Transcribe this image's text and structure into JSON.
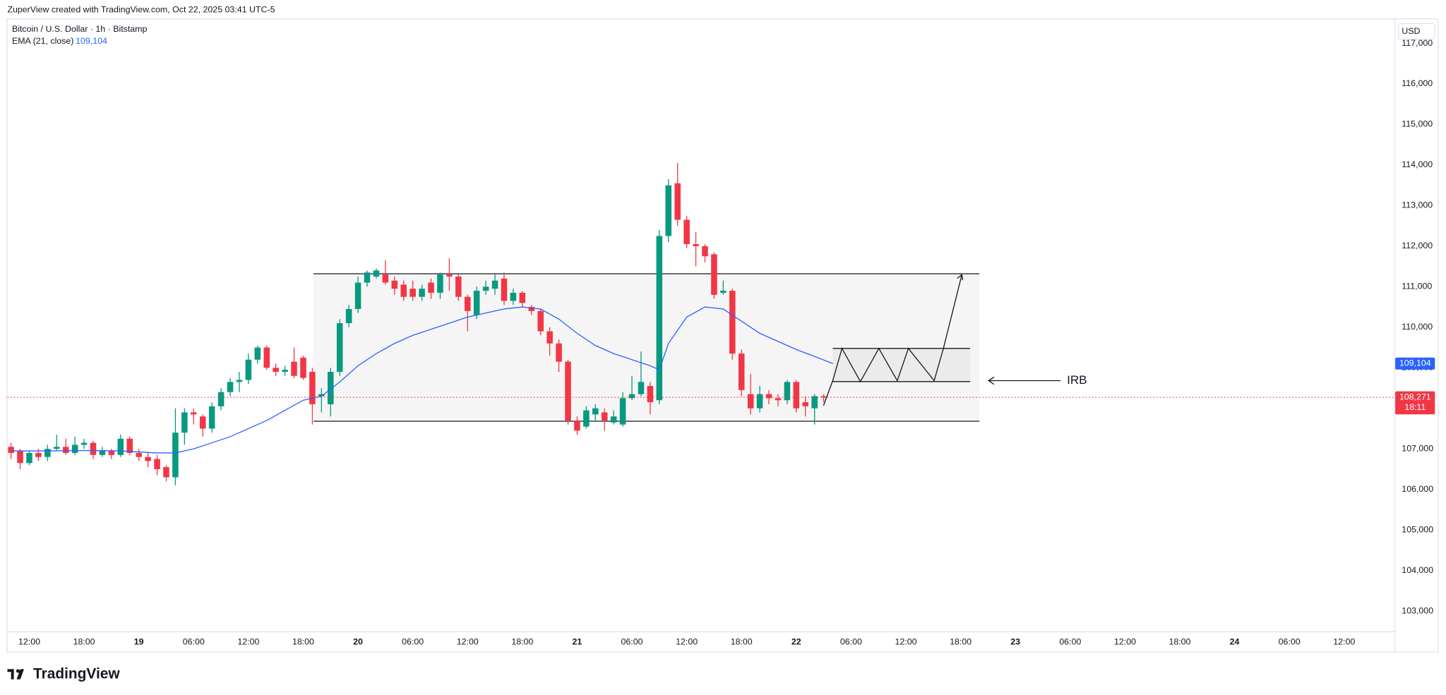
{
  "header": {
    "credit": "ZuperView created with TradingView.com, Oct 22, 2025 03:41 UTC-5",
    "logo": "TradingView"
  },
  "chart_data": {
    "type": "candlestick",
    "title": "Bitcoin / U.S. Dollar · 1h · Bitstamp",
    "currency": "USD",
    "annotation": "IRB",
    "up_color": "#089981",
    "down_color": "#f23645",
    "x": [
      -2,
      -1,
      0,
      1,
      2,
      3,
      4,
      5,
      6,
      7,
      8,
      9,
      10,
      11,
      12,
      13,
      14,
      15,
      16,
      17,
      18,
      19,
      20,
      21,
      22,
      23,
      24,
      25,
      26,
      27,
      28,
      29,
      30,
      31,
      32,
      33,
      34,
      35,
      36,
      37,
      38,
      39,
      40,
      41,
      42,
      43,
      44,
      45,
      46,
      47,
      48,
      49,
      50,
      51,
      52,
      53,
      54,
      55,
      56,
      57,
      58,
      59,
      60,
      61,
      62,
      63,
      64,
      65,
      66,
      67,
      68,
      69,
      70,
      71,
      72,
      73,
      74,
      75,
      76,
      77,
      78,
      79,
      80,
      81,
      82,
      83,
      84,
      85,
      86,
      87
    ],
    "open": [
      107050,
      106950,
      106650,
      106900,
      106800,
      107000,
      107050,
      106900,
      107100,
      107150,
      106850,
      106950,
      106850,
      107250,
      106900,
      106800,
      106750,
      106550,
      106300,
      107400,
      107900,
      107800,
      107500,
      108050,
      108400,
      108650,
      108700,
      109200,
      109500,
      109000,
      108900,
      109150,
      109250,
      108900,
      108300,
      108100,
      108900,
      110100,
      110450,
      111100,
      111250,
      111300,
      111150,
      111050,
      110950,
      110750,
      111100,
      110850,
      111300,
      111250,
      110750,
      110300,
      110900,
      110950,
      111200,
      110650,
      110850,
      110500,
      110400,
      109900,
      109600,
      109150,
      107700,
      107550,
      107850,
      107900,
      107650,
      107600,
      108250,
      108350,
      108550,
      108200,
      112250,
      113550,
      112650,
      112050,
      112000,
      111800,
      110850,
      110900,
      109350,
      108350,
      108000,
      108350,
      108250,
      108200,
      108650,
      108150,
      108000,
      108300
    ],
    "high": [
      107150,
      107000,
      106950,
      107000,
      107100,
      107350,
      107250,
      107300,
      107250,
      107200,
      107050,
      107000,
      107350,
      107300,
      107000,
      106900,
      106850,
      106600,
      108000,
      108000,
      108000,
      107850,
      108150,
      108500,
      108750,
      108900,
      109350,
      109550,
      109550,
      109100,
      109050,
      109500,
      109300,
      109000,
      108500,
      109000,
      110200,
      110550,
      111250,
      111400,
      111450,
      111650,
      111250,
      111150,
      111150,
      111050,
      111200,
      111350,
      111700,
      111300,
      110800,
      111000,
      111150,
      111300,
      111350,
      110950,
      110900,
      110550,
      110450,
      110000,
      109700,
      109200,
      107800,
      108050,
      108100,
      108000,
      107950,
      108400,
      108800,
      109400,
      108650,
      112400,
      113650,
      114050,
      112750,
      112350,
      112050,
      111850,
      111150,
      110950,
      109450,
      108850,
      108550,
      108450,
      108350,
      108700,
      108700,
      108300,
      108350,
      108350
    ],
    "low": [
      106750,
      106500,
      106600,
      106700,
      106700,
      106950,
      106850,
      106850,
      107000,
      106750,
      106800,
      106750,
      106800,
      106850,
      106700,
      106550,
      106350,
      106200,
      106100,
      107100,
      107600,
      107300,
      107400,
      107950,
      108300,
      108400,
      108600,
      109100,
      108950,
      108800,
      108800,
      108750,
      108700,
      107600,
      107900,
      107800,
      108800,
      110000,
      110350,
      111000,
      111200,
      111050,
      110800,
      110650,
      110650,
      110650,
      110700,
      110700,
      110900,
      110650,
      109900,
      110200,
      110800,
      110800,
      110550,
      110550,
      110500,
      110300,
      109800,
      109300,
      108900,
      107600,
      107350,
      107500,
      107700,
      107450,
      107600,
      107550,
      108200,
      108300,
      107850,
      108100,
      112100,
      112500,
      111950,
      111500,
      111600,
      110700,
      110800,
      109200,
      108300,
      107850,
      107900,
      108100,
      108050,
      108100,
      107900,
      107800,
      107600,
      108150
    ],
    "close": [
      106900,
      106650,
      106900,
      106800,
      107000,
      107050,
      106900,
      107100,
      107150,
      106850,
      106950,
      106850,
      107250,
      106900,
      106800,
      106700,
      106500,
      106300,
      107400,
      107900,
      107850,
      107500,
      108050,
      108400,
      108650,
      108700,
      109200,
      109500,
      109000,
      108900,
      108950,
      108800,
      108750,
      108100,
      108350,
      108900,
      110100,
      110450,
      111100,
      111350,
      111400,
      111100,
      110950,
      110750,
      110750,
      110950,
      110850,
      111300,
      111250,
      110750,
      110400,
      110900,
      111000,
      111150,
      110650,
      110850,
      110600,
      110400,
      109900,
      109600,
      109150,
      107700,
      107450,
      107950,
      108000,
      107700,
      107800,
      108250,
      108350,
      108650,
      108150,
      112250,
      113500,
      112650,
      112050,
      112000,
      111750,
      110800,
      110900,
      109350,
      108450,
      108000,
      108350,
      108250,
      108200,
      108650,
      108000,
      108050,
      108300,
      108271
    ],
    "series": [
      {
        "name": "EMA (21, close)",
        "color": "#2962ff",
        "x": [
          -2,
          2,
          6,
          10,
          14,
          16,
          18,
          20,
          22,
          24,
          26,
          28,
          30,
          32,
          34,
          36,
          38,
          40,
          42,
          44,
          46,
          48,
          50,
          52,
          54,
          56,
          58,
          60,
          62,
          64,
          66,
          68,
          69,
          70,
          72,
          74,
          76,
          78,
          80,
          82,
          84,
          86,
          88
        ],
        "values": [
          106950,
          106950,
          106960,
          106950,
          106900,
          106900,
          107000,
          107150,
          107300,
          107500,
          107700,
          107950,
          108200,
          108300,
          108650,
          109050,
          109350,
          109600,
          109800,
          109950,
          110100,
          110250,
          110350,
          110450,
          110500,
          110450,
          110200,
          109850,
          109550,
          109350,
          109200,
          109050,
          108950,
          109600,
          110250,
          110500,
          110450,
          110150,
          109850,
          109650,
          109450,
          109280,
          109104
        ]
      }
    ],
    "price_labels": [
      {
        "value": 109104,
        "label": "109,104",
        "color": "#2962ff"
      },
      {
        "value": 108271,
        "label": "108,271",
        "sub": "18:11",
        "color": "#f23645"
      }
    ],
    "xlim": [
      -2.4,
      149.5
    ],
    "xticks": [
      {
        "value": 0,
        "label": "12:00"
      },
      {
        "value": 6,
        "label": "18:00"
      },
      {
        "value": 12,
        "label": "19"
      },
      {
        "value": 18,
        "label": "06:00"
      },
      {
        "value": 24,
        "label": "12:00"
      },
      {
        "value": 30,
        "label": "18:00"
      },
      {
        "value": 36,
        "label": "20"
      },
      {
        "value": 42,
        "label": "06:00"
      },
      {
        "value": 48,
        "label": "12:00"
      },
      {
        "value": 54,
        "label": "18:00"
      },
      {
        "value": 60,
        "label": "21"
      },
      {
        "value": 66,
        "label": "06:00"
      },
      {
        "value": 72,
        "label": "12:00"
      },
      {
        "value": 78,
        "label": "18:00"
      },
      {
        "value": 84,
        "label": "22"
      },
      {
        "value": 90,
        "label": "06:00"
      },
      {
        "value": 96,
        "label": "12:00"
      },
      {
        "value": 102,
        "label": "18:00"
      },
      {
        "value": 108,
        "label": "23"
      },
      {
        "value": 114,
        "label": "06:00"
      },
      {
        "value": 120,
        "label": "12:00"
      },
      {
        "value": 126,
        "label": "18:00"
      },
      {
        "value": 132,
        "label": "24"
      },
      {
        "value": 138,
        "label": "06:00"
      },
      {
        "value": 144,
        "label": "12:00"
      }
    ],
    "ylim": [
      102500,
      117614
    ],
    "yticks": [
      {
        "value": 103000,
        "label": "103,000"
      },
      {
        "value": 104000,
        "label": "104,000"
      },
      {
        "value": 105000,
        "label": "105,000"
      },
      {
        "value": 106000,
        "label": "106,000"
      },
      {
        "value": 107000,
        "label": "107,000"
      },
      {
        "value": 108000,
        "label": "108,000"
      },
      {
        "value": 109000,
        "label": "109,000"
      },
      {
        "value": 110000,
        "label": "110,000"
      },
      {
        "value": 111000,
        "label": "111,000"
      },
      {
        "value": 112000,
        "label": "112,000"
      },
      {
        "value": 113000,
        "label": "113,000"
      },
      {
        "value": 114000,
        "label": "114,000"
      },
      {
        "value": 115000,
        "label": "115,000"
      },
      {
        "value": 116000,
        "label": "116,000"
      },
      {
        "value": 117000,
        "label": "117,000"
      }
    ],
    "grid": false
  }
}
